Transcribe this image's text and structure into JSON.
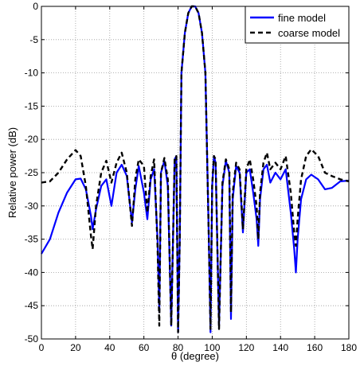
{
  "chart_data": {
    "type": "line",
    "title": "",
    "xlabel": "θ (degree)",
    "ylabel": "Relative power (dB)",
    "xlim": [
      0,
      180
    ],
    "ylim": [
      -50,
      0
    ],
    "xticks": [
      0,
      20,
      40,
      60,
      80,
      100,
      120,
      140,
      160,
      180
    ],
    "yticks": [
      0,
      -5,
      -10,
      -15,
      -20,
      -25,
      -30,
      -35,
      -40,
      -45,
      -50
    ],
    "xtick_labels": [
      "0",
      "20",
      "40",
      "60",
      "80",
      "100",
      "120",
      "140",
      "160",
      "180"
    ],
    "ytick_labels": [
      "0",
      "-5",
      "-10",
      "-15",
      "-20",
      "-25",
      "-30",
      "-35",
      "-40",
      "-45",
      "-50"
    ],
    "grid": true,
    "legend": "top-right",
    "series": [
      {
        "name": "fine model",
        "color": "#0000ff",
        "style": "solid",
        "x": [
          0,
          5,
          10,
          15,
          20,
          23,
          26,
          29,
          30,
          32,
          35,
          38,
          41,
          44,
          47,
          50,
          53,
          55,
          57,
          60,
          62,
          64,
          66,
          68,
          69,
          70,
          72,
          74,
          76,
          78,
          79,
          80,
          81,
          82,
          84,
          86,
          88,
          90,
          92,
          94,
          96,
          98,
          99,
          100,
          101,
          102,
          104,
          106,
          108,
          110,
          111,
          112,
          114,
          116,
          118,
          120,
          122,
          124,
          126,
          127,
          128,
          130,
          132,
          134,
          137,
          140,
          143,
          146,
          148,
          149,
          150,
          152,
          155,
          158,
          162,
          166,
          170,
          175,
          180
        ],
        "y": [
          -37.2,
          -35,
          -31,
          -28,
          -26,
          -25.9,
          -27.5,
          -31.5,
          -33.5,
          -30.5,
          -27,
          -26,
          -30,
          -25,
          -23.8,
          -25.5,
          -32.5,
          -27.5,
          -24,
          -28,
          -32,
          -26,
          -24.5,
          -35,
          -46,
          -25,
          -23.2,
          -27,
          -48,
          -23,
          -22.5,
          -49,
          -35,
          -10,
          -4,
          -1,
          0,
          0,
          -1,
          -4,
          -10,
          -35,
          -49,
          -27,
          -22.5,
          -23.5,
          -48,
          -27,
          -23.2,
          -25,
          -47,
          -29,
          -24,
          -25,
          -34,
          -25,
          -24.5,
          -28,
          -32,
          -36,
          -29,
          -24.5,
          -23.8,
          -26.5,
          -25,
          -26,
          -24.5,
          -31,
          -36.5,
          -40,
          -35,
          -29,
          -26,
          -25.3,
          -26,
          -27.5,
          -27.3,
          -26.3,
          -26.2
        ]
      },
      {
        "name": "coarse model",
        "color": "#000000",
        "style": "dashed",
        "x": [
          0,
          5,
          10,
          15,
          20,
          23,
          26,
          29,
          30,
          32,
          35,
          38,
          41,
          44,
          47,
          50,
          53,
          55,
          57,
          60,
          62,
          64,
          66,
          68,
          69,
          70,
          72,
          74,
          76,
          78,
          79,
          80,
          81,
          82,
          84,
          86,
          88,
          90,
          92,
          94,
          96,
          98,
          99,
          100,
          101,
          102,
          104,
          106,
          108,
          110,
          111,
          112,
          114,
          116,
          118,
          120,
          122,
          124,
          126,
          127,
          128,
          130,
          132,
          134,
          137,
          140,
          143,
          146,
          148,
          149,
          150,
          152,
          155,
          158,
          162,
          166,
          170,
          175,
          180
        ],
        "y": [
          -26.5,
          -26.3,
          -25,
          -23,
          -21.6,
          -22.5,
          -27,
          -34.5,
          -36.5,
          -30,
          -25,
          -23.2,
          -26.5,
          -23.5,
          -22,
          -25,
          -33,
          -26,
          -23,
          -24,
          -31,
          -25.5,
          -23,
          -36,
          -48,
          -25,
          -22.8,
          -26,
          -48,
          -22.8,
          -22.5,
          -49,
          -35,
          -10,
          -4,
          -1,
          0,
          0,
          -1,
          -4,
          -10,
          -35,
          -48.5,
          -27,
          -22.5,
          -23,
          -48.5,
          -26.5,
          -23,
          -24.5,
          -46,
          -28,
          -23.5,
          -24.5,
          -33.5,
          -24.5,
          -23,
          -26,
          -30,
          -35,
          -28,
          -23.5,
          -22,
          -24.5,
          -23.5,
          -24.5,
          -22.5,
          -28,
          -34,
          -36,
          -32,
          -26,
          -22.5,
          -21.5,
          -22.5,
          -25,
          -25.5,
          -26,
          -26.3
        ]
      }
    ]
  }
}
